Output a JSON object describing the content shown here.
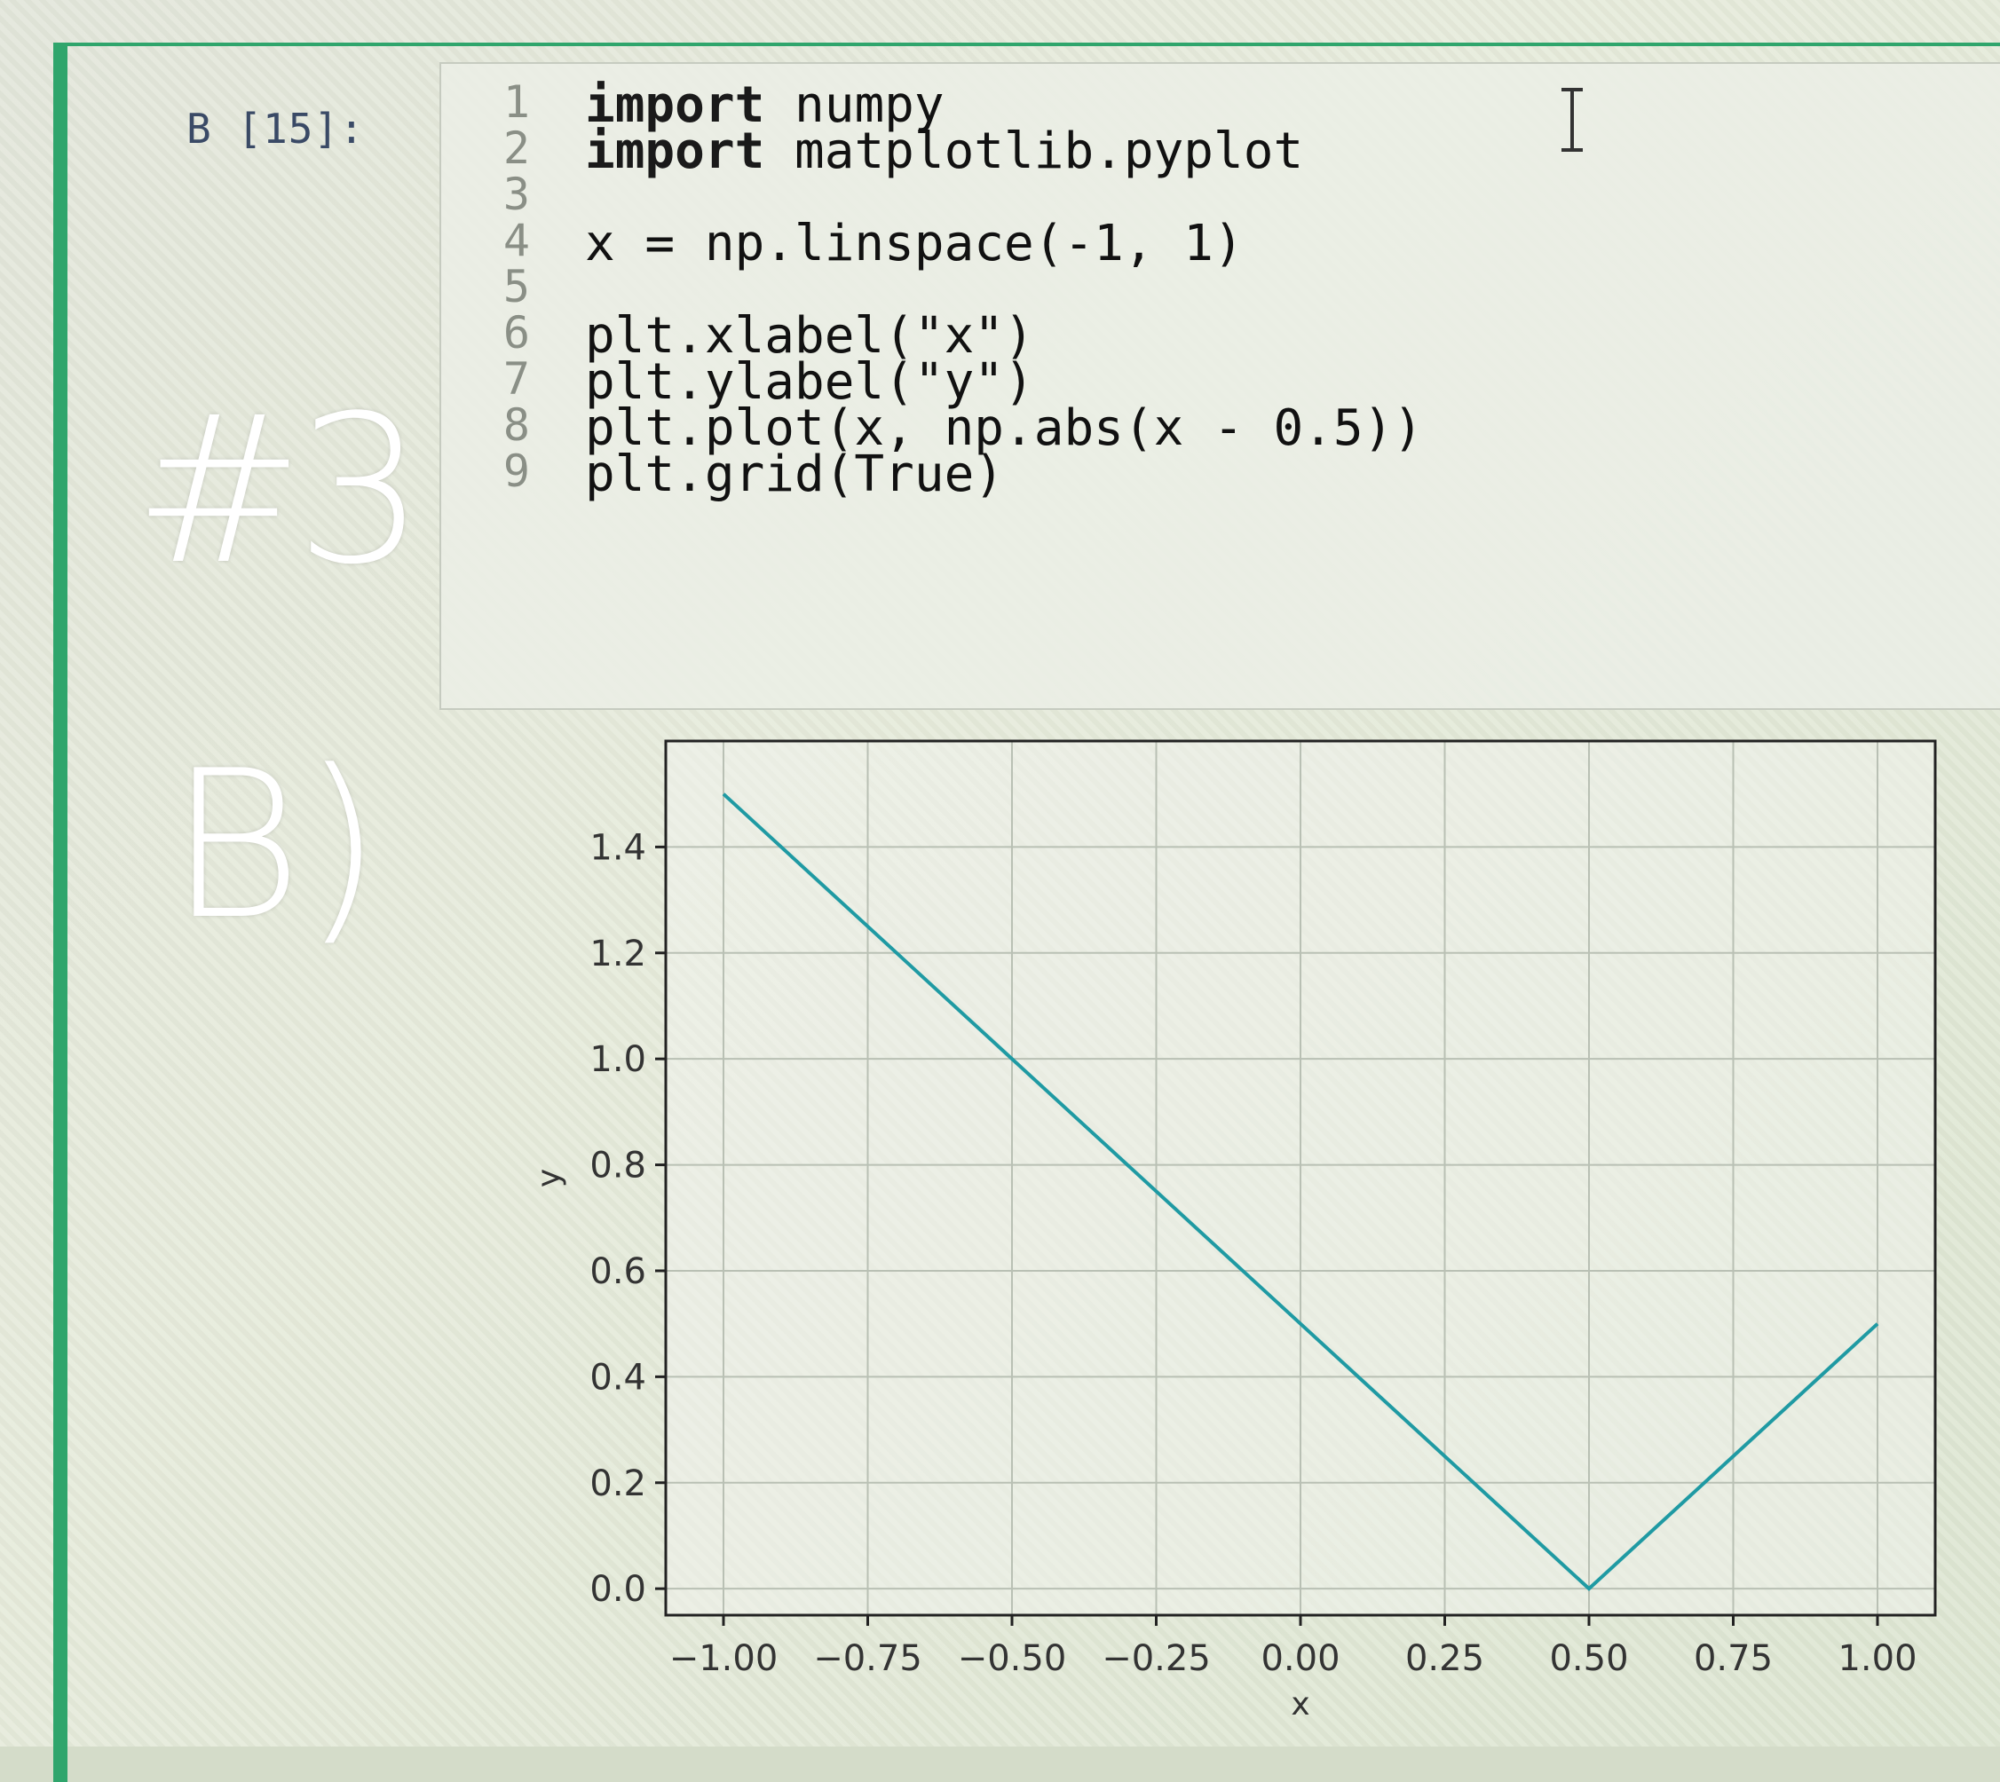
{
  "cell": {
    "prompt": "В [15]:"
  },
  "code": [
    {
      "num": "1",
      "kw": "import",
      "rest": " numpy"
    },
    {
      "num": "2",
      "kw": "import",
      "rest": " matplotlib.pyplot"
    },
    {
      "num": "3",
      "kw": "",
      "rest": ""
    },
    {
      "num": "4",
      "kw": "",
      "rest": "x = np.linspace(-1, 1)"
    },
    {
      "num": "5",
      "kw": "",
      "rest": ""
    },
    {
      "num": "6",
      "kw": "",
      "rest": "plt.xlabel(\"x\")"
    },
    {
      "num": "7",
      "kw": "",
      "rest": "plt.ylabel(\"y\")"
    },
    {
      "num": "8",
      "kw": "",
      "rest": "plt.plot(x, np.abs(x - 0.5))"
    },
    {
      "num": "9",
      "kw": "",
      "rest": "plt.grid(True)"
    }
  ],
  "annotations": {
    "number": "#3",
    "letter": "B)"
  },
  "icons": {
    "text_cursor": "text-cursor-icon"
  },
  "chart_data": {
    "type": "line",
    "xlabel": "x",
    "ylabel": "y",
    "xlim": [
      -1.1,
      1.1
    ],
    "ylim": [
      -0.05,
      1.6
    ],
    "xticks": [
      -1.0,
      -0.75,
      -0.5,
      -0.25,
      0.0,
      0.25,
      0.5,
      0.75,
      1.0
    ],
    "xtick_labels": [
      "−1.00",
      "−0.75",
      "−0.50",
      "−0.25",
      "0.00",
      "0.25",
      "0.50",
      "0.75",
      "1.00"
    ],
    "yticks": [
      0.0,
      0.2,
      0.4,
      0.6,
      0.8,
      1.0,
      1.2,
      1.4
    ],
    "ytick_labels": [
      "0.0",
      "0.2",
      "0.4",
      "0.6",
      "0.8",
      "1.0",
      "1.2",
      "1.4"
    ],
    "grid": true,
    "line_color": "#1f9aa3",
    "series": [
      {
        "x": [
          -1.0,
          0.5,
          1.0
        ],
        "y": [
          1.5,
          0.0,
          0.5
        ]
      }
    ]
  }
}
